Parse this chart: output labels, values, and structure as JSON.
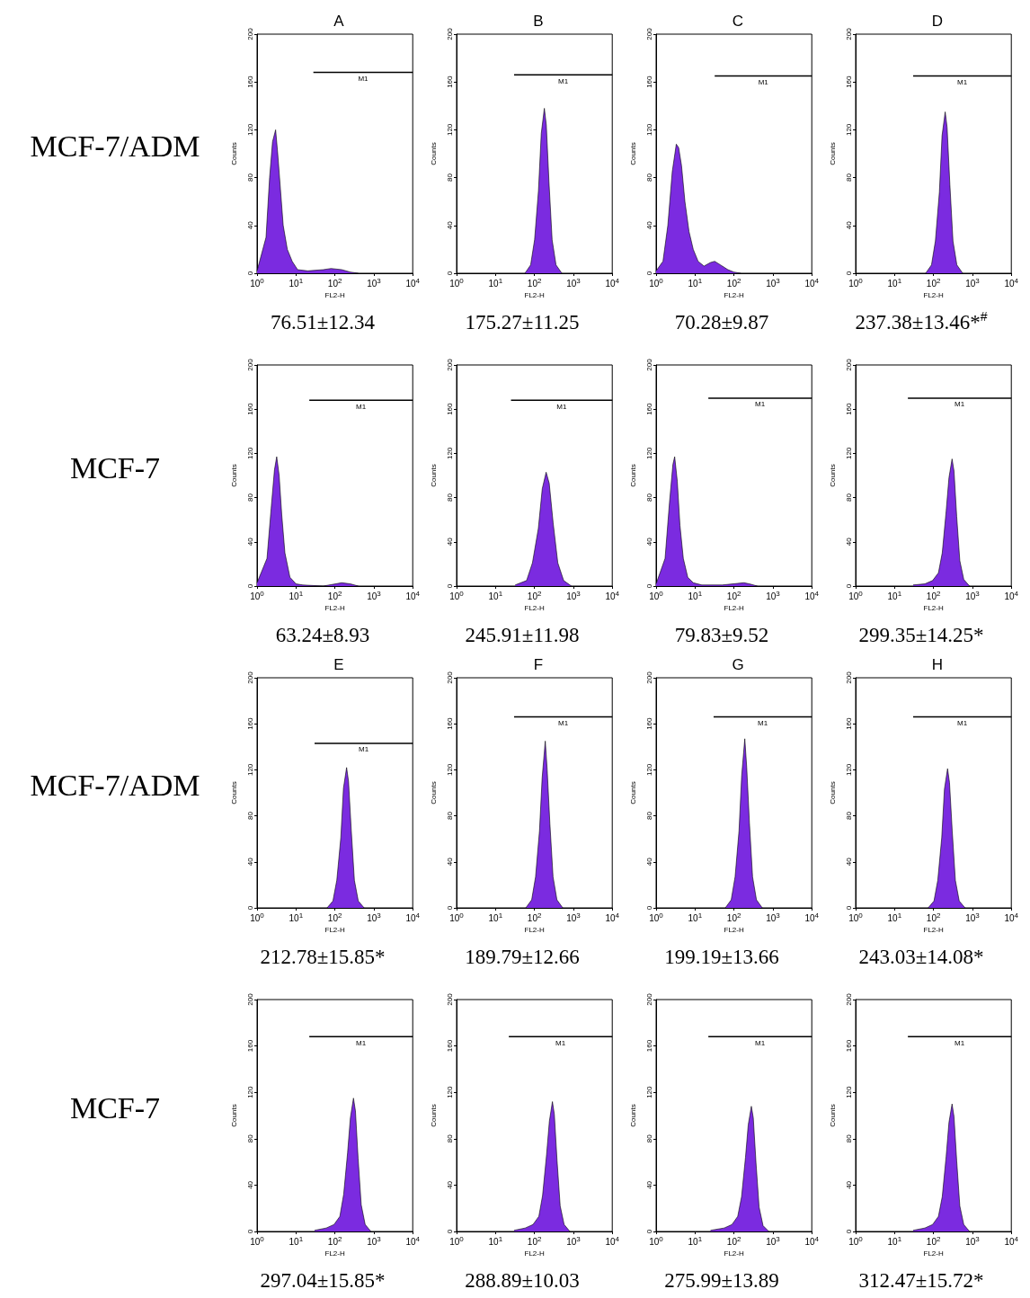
{
  "chart_data": [
    {
      "type": "other",
      "title": "MCF-7/ADM"
    },
    {
      "type": "area",
      "title": "A",
      "xlabel": "FL2-H",
      "ylabel": "Counts",
      "xlim": [
        1,
        10000
      ],
      "ylim": [
        0,
        200
      ],
      "yticks": [
        0,
        40,
        80,
        120,
        160,
        200
      ],
      "xticks": [
        {
          "value": 1,
          "label": "10$^{0}$"
        },
        {
          "value": 10,
          "label": "10$^{1}$"
        },
        {
          "value": 100,
          "label": "10$^{2}$"
        },
        {
          "value": 1000,
          "label": "10$^{3}$"
        },
        {
          "value": 10000,
          "label": "10$^{4}$"
        }
      ],
      "log": "x",
      "grid": false,
      "annotations": [
        "76.51±12.34"
      ],
      "series": [
        {
          "type": "area",
          "color": "#7b2be0",
          "x": [
            1,
            1.7,
            2.1,
            2.5,
            3,
            3.4,
            4,
            4.7,
            6,
            8,
            11,
            20,
            50,
            80,
            150,
            250,
            400
          ],
          "values": [
            2,
            30,
            80,
            110,
            120,
            100,
            70,
            40,
            20,
            10,
            3,
            2,
            3,
            4,
            3,
            1,
            0
          ]
        },
        {
          "type": "line",
          "name": "M1",
          "color": "#000000",
          "x": [
            28,
            10000
          ],
          "values": [
            168,
            168
          ]
        }
      ]
    },
    {
      "type": "area",
      "title": "B",
      "xlabel": "FL2-H",
      "ylabel": "Counts",
      "xlim": [
        1,
        10000
      ],
      "ylim": [
        0,
        200
      ],
      "yticks": [
        0,
        40,
        80,
        120,
        160,
        200
      ],
      "xticks": [
        {
          "value": 1,
          "label": "10$^{0}$"
        },
        {
          "value": 10,
          "label": "10$^{1}$"
        },
        {
          "value": 100,
          "label": "10$^{2}$"
        },
        {
          "value": 1000,
          "label": "10$^{3}$"
        },
        {
          "value": 10000,
          "label": "10$^{4}$"
        }
      ],
      "log": "x",
      "grid": false,
      "annotations": [
        "175.27±11.25"
      ],
      "series": [
        {
          "type": "area",
          "color": "#7b2be0",
          "x": [
            57,
            80,
            101,
            127,
            150,
            180,
            202,
            237,
            285,
            359,
            507
          ],
          "values": [
            0,
            7,
            28,
            69,
            117,
            138,
            124,
            76,
            28,
            7,
            0
          ]
        },
        {
          "type": "line",
          "name": "M1",
          "color": "#000000",
          "x": [
            30,
            10000
          ],
          "values": [
            166,
            166
          ]
        }
      ]
    },
    {
      "type": "area",
      "title": "C",
      "xlabel": "FL2-H",
      "ylabel": "Counts",
      "xlim": [
        1,
        10000
      ],
      "ylim": [
        0,
        200
      ],
      "yticks": [
        0,
        40,
        80,
        120,
        160,
        200
      ],
      "xticks": [
        {
          "value": 1,
          "label": "10$^{0}$"
        },
        {
          "value": 10,
          "label": "10$^{1}$"
        },
        {
          "value": 100,
          "label": "10$^{2}$"
        },
        {
          "value": 1000,
          "label": "10$^{3}$"
        },
        {
          "value": 10000,
          "label": "10$^{4}$"
        }
      ],
      "log": "x",
      "grid": false,
      "annotations": [
        "70.28±9.87"
      ],
      "series": [
        {
          "type": "area",
          "color": "#7b2be0",
          "x": [
            1,
            1.5,
            2,
            2.6,
            3.3,
            3.8,
            4.5,
            5.5,
            7,
            9,
            12,
            17,
            25,
            32,
            45,
            70,
            100,
            150
          ],
          "values": [
            2,
            10,
            40,
            85,
            108,
            105,
            90,
            60,
            35,
            20,
            10,
            6,
            9,
            10,
            7,
            3,
            1,
            0
          ]
        },
        {
          "type": "line",
          "name": "M1",
          "color": "#000000",
          "x": [
            32,
            10000
          ],
          "values": [
            165,
            165
          ]
        }
      ]
    },
    {
      "type": "area",
      "title": "D",
      "xlabel": "FL2-H",
      "ylabel": "Counts",
      "xlim": [
        1,
        10000
      ],
      "ylim": [
        0,
        200
      ],
      "yticks": [
        0,
        40,
        80,
        120,
        160,
        200
      ],
      "xticks": [
        {
          "value": 1,
          "label": "10$^{0}$"
        },
        {
          "value": 10,
          "label": "10$^{1}$"
        },
        {
          "value": 100,
          "label": "10$^{2}$"
        },
        {
          "value": 1000,
          "label": "10$^{3}$"
        },
        {
          "value": 10000,
          "label": "10$^{4}$"
        }
      ],
      "log": "x",
      "grid": false,
      "annotations": [
        "237.38±13.46*$^{#}$"
      ],
      "series": [
        {
          "type": "area",
          "color": "#7b2be0",
          "x": [
            63,
            89,
            112,
            142,
            166,
            200,
            224,
            264,
            317,
            399,
            564
          ],
          "values": [
            0,
            7,
            27,
            68,
            115,
            135,
            122,
            74,
            27,
            7,
            0
          ]
        },
        {
          "type": "line",
          "name": "M1",
          "color": "#000000",
          "x": [
            30,
            10000
          ],
          "values": [
            165,
            165
          ]
        }
      ]
    },
    {
      "type": "other",
      "title": "MCF-7"
    },
    {
      "type": "area",
      "xlabel": "FL2-H",
      "ylabel": "Counts",
      "xlim": [
        1,
        10000
      ],
      "ylim": [
        0,
        200
      ],
      "yticks": [
        0,
        40,
        80,
        120,
        160,
        200
      ],
      "xticks": [
        {
          "value": 1,
          "label": "10$^{0}$"
        },
        {
          "value": 10,
          "label": "10$^{1}$"
        },
        {
          "value": 100,
          "label": "10$^{2}$"
        },
        {
          "value": 1000,
          "label": "10$^{3}$"
        },
        {
          "value": 10000,
          "label": "10$^{4}$"
        }
      ],
      "log": "x",
      "grid": false,
      "annotations": [
        "63.24±8.93"
      ],
      "series": [
        {
          "type": "area",
          "color": "#7b2be0",
          "x": [
            1,
            1.8,
            2.3,
            2.8,
            3.2,
            3.7,
            4.3,
            5.2,
            7,
            10,
            15,
            50,
            150,
            250,
            400
          ],
          "values": [
            3,
            25,
            70,
            105,
            117,
            100,
            65,
            30,
            8,
            2,
            1,
            0,
            3,
            2,
            0
          ]
        },
        {
          "type": "line",
          "name": "M1",
          "color": "#000000",
          "x": [
            22,
            10000
          ],
          "values": [
            168,
            168
          ]
        }
      ]
    },
    {
      "type": "area",
      "xlabel": "FL2-H",
      "ylabel": "Counts",
      "xlim": [
        1,
        10000
      ],
      "ylim": [
        0,
        200
      ],
      "yticks": [
        0,
        40,
        80,
        120,
        160,
        200
      ],
      "xticks": [
        {
          "value": 1,
          "label": "10$^{0}$"
        },
        {
          "value": 10,
          "label": "10$^{1}$"
        },
        {
          "value": 100,
          "label": "10$^{2}$"
        },
        {
          "value": 1000,
          "label": "10$^{3}$"
        },
        {
          "value": 10000,
          "label": "10$^{4}$"
        }
      ],
      "log": "x",
      "grid": false,
      "annotations": [
        "245.91±11.98"
      ],
      "series": [
        {
          "type": "area",
          "color": "#7b2be0",
          "x": [
            32,
            63,
            89,
            126,
            159,
            200,
            240,
            303,
            399,
            564,
            893
          ],
          "values": [
            1,
            5,
            21,
            52,
            88,
            103,
            93,
            57,
            21,
            5,
            0
          ]
        },
        {
          "type": "line",
          "name": "M1",
          "color": "#000000",
          "x": [
            25,
            10000
          ],
          "values": [
            168,
            168
          ]
        }
      ]
    },
    {
      "type": "area",
      "xlabel": "FL2-H",
      "ylabel": "Counts",
      "xlim": [
        1,
        10000
      ],
      "ylim": [
        0,
        200
      ],
      "yticks": [
        0,
        40,
        80,
        120,
        160,
        200
      ],
      "xticks": [
        {
          "value": 1,
          "label": "10$^{0}$"
        },
        {
          "value": 10,
          "label": "10$^{1}$"
        },
        {
          "value": 100,
          "label": "10$^{2}$"
        },
        {
          "value": 1000,
          "label": "10$^{3}$"
        },
        {
          "value": 10000,
          "label": "10$^{4}$"
        }
      ],
      "log": "x",
      "grid": false,
      "annotations": [
        "79.83±9.52"
      ],
      "series": [
        {
          "type": "area",
          "color": "#7b2be0",
          "x": [
            1,
            1.7,
            2.2,
            2.7,
            3,
            3.5,
            4.1,
            5,
            6.5,
            9,
            15,
            50,
            180,
            250,
            400
          ],
          "values": [
            2,
            25,
            75,
            110,
            117,
            95,
            55,
            25,
            8,
            3,
            1,
            1,
            3,
            2,
            0
          ]
        },
        {
          "type": "line",
          "name": "M1",
          "color": "#000000",
          "x": [
            22,
            10000
          ],
          "values": [
            170,
            170
          ]
        }
      ]
    },
    {
      "type": "area",
      "xlabel": "FL2-H",
      "ylabel": "Counts",
      "xlim": [
        1,
        10000
      ],
      "ylim": [
        0,
        200
      ],
      "yticks": [
        0,
        40,
        80,
        120,
        160,
        200
      ],
      "xticks": [
        {
          "value": 1,
          "label": "10$^{0}$"
        },
        {
          "value": 10,
          "label": "10$^{1}$"
        },
        {
          "value": 100,
          "label": "10$^{2}$"
        },
        {
          "value": 1000,
          "label": "10$^{3}$"
        },
        {
          "value": 10000,
          "label": "10$^{4}$"
        }
      ],
      "log": "x",
      "grid": false,
      "annotations": [
        "299.35±14.25*"
      ],
      "series": [
        {
          "type": "area",
          "color": "#7b2be0",
          "x": [
            30,
            60,
            95,
            134,
            168,
            212,
            250,
            300,
            337,
            395,
            475,
            600,
            845
          ],
          "values": [
            1,
            2,
            5,
            12,
            30,
            68,
            98,
            115,
            104,
            63,
            23,
            6,
            0
          ]
        },
        {
          "type": "line",
          "name": "M1",
          "color": "#000000",
          "x": [
            22,
            10000
          ],
          "values": [
            170,
            170
          ]
        }
      ]
    },
    {
      "type": "other",
      "title": "MCF-7/ADM"
    },
    {
      "type": "area",
      "title": "E",
      "xlabel": "FL2-H",
      "ylabel": "Counts",
      "xlim": [
        1,
        10000
      ],
      "ylim": [
        0,
        200
      ],
      "yticks": [
        0,
        40,
        80,
        120,
        160,
        200
      ],
      "xticks": [
        {
          "value": 1,
          "label": "10$^{0}$"
        },
        {
          "value": 10,
          "label": "10$^{1}$"
        },
        {
          "value": 100,
          "label": "10$^{2}$"
        },
        {
          "value": 1000,
          "label": "10$^{3}$"
        },
        {
          "value": 10000,
          "label": "10$^{4}$"
        }
      ],
      "log": "x",
      "grid": false,
      "annotations": [
        "212.78±15.85*"
      ],
      "series": [
        {
          "type": "area",
          "color": "#7b2be0",
          "x": [
            63,
            89,
            112,
            142,
            166,
            200,
            224,
            264,
            317,
            399,
            564
          ],
          "values": [
            0,
            6,
            24,
            61,
            104,
            122,
            110,
            67,
            24,
            6,
            0
          ]
        },
        {
          "type": "line",
          "name": "M1",
          "color": "#000000",
          "x": [
            30,
            10000
          ],
          "values": [
            143,
            143
          ]
        }
      ]
    },
    {
      "type": "area",
      "title": "F",
      "xlabel": "FL2-H",
      "ylabel": "Counts",
      "xlim": [
        1,
        10000
      ],
      "ylim": [
        0,
        200
      ],
      "yticks": [
        0,
        40,
        80,
        120,
        160,
        200
      ],
      "xticks": [
        {
          "value": 1,
          "label": "10$^{0}$"
        },
        {
          "value": 10,
          "label": "10$^{1}$"
        },
        {
          "value": 100,
          "label": "10$^{2}$"
        },
        {
          "value": 1000,
          "label": "10$^{3}$"
        },
        {
          "value": 10000,
          "label": "10$^{4}$"
        }
      ],
      "log": "x",
      "grid": false,
      "annotations": [
        "189.79±12.66"
      ],
      "series": [
        {
          "type": "area",
          "color": "#7b2be0",
          "x": [
            60,
            85,
            107,
            135,
            158,
            190,
            213,
            250,
            301,
            379,
            535
          ],
          "values": [
            0,
            7,
            27,
            67,
            113,
            145,
            120,
            73,
            27,
            7,
            0
          ]
        },
        {
          "type": "line",
          "name": "M1",
          "color": "#000000",
          "x": [
            30,
            10000
          ],
          "values": [
            166,
            166
          ]
        }
      ]
    },
    {
      "type": "area",
      "title": "G",
      "xlabel": "FL2-H",
      "ylabel": "Counts",
      "xlim": [
        1,
        10000
      ],
      "ylim": [
        0,
        200
      ],
      "yticks": [
        0,
        40,
        80,
        120,
        160,
        200
      ],
      "xticks": [
        {
          "value": 1,
          "label": "10$^{0}$"
        },
        {
          "value": 10,
          "label": "10$^{1}$"
        },
        {
          "value": 100,
          "label": "10$^{2}$"
        },
        {
          "value": 1000,
          "label": "10$^{3}$"
        },
        {
          "value": 10000,
          "label": "10$^{4}$"
        }
      ],
      "log": "x",
      "grid": false,
      "annotations": [
        "199.19±13.66"
      ],
      "series": [
        {
          "type": "area",
          "color": "#7b2be0",
          "x": [
            60,
            85,
            107,
            135,
            158,
            190,
            213,
            250,
            301,
            379,
            535
          ],
          "values": [
            0,
            7,
            27,
            67,
            115,
            147,
            122,
            74,
            27,
            7,
            0
          ]
        },
        {
          "type": "line",
          "name": "M1",
          "color": "#000000",
          "x": [
            30,
            10000
          ],
          "values": [
            166,
            166
          ]
        }
      ]
    },
    {
      "type": "area",
      "title": "H",
      "xlabel": "FL2-H",
      "ylabel": "Counts",
      "xlim": [
        1,
        10000
      ],
      "ylim": [
        0,
        200
      ],
      "yticks": [
        0,
        40,
        80,
        120,
        160,
        200
      ],
      "xticks": [
        {
          "value": 1,
          "label": "10$^{0}$"
        },
        {
          "value": 10,
          "label": "10$^{1}$"
        },
        {
          "value": 100,
          "label": "10$^{2}$"
        },
        {
          "value": 1000,
          "label": "10$^{3}$"
        },
        {
          "value": 10000,
          "label": "10$^{4}$"
        }
      ],
      "log": "x",
      "grid": false,
      "annotations": [
        "243.03±14.08*"
      ],
      "series": [
        {
          "type": "area",
          "color": "#7b2be0",
          "x": [
            73,
            103,
            129,
            163,
            191,
            230,
            258,
            303,
            365,
            459,
            648
          ],
          "values": [
            0,
            6,
            24,
            61,
            103,
            121,
            109,
            67,
            24,
            6,
            0
          ]
        },
        {
          "type": "line",
          "name": "M1",
          "color": "#000000",
          "x": [
            30,
            10000
          ],
          "values": [
            166,
            166
          ]
        }
      ]
    },
    {
      "type": "other",
      "title": "MCF-7"
    },
    {
      "type": "area",
      "xlabel": "FL2-H",
      "ylabel": "Counts",
      "xlim": [
        1,
        10000
      ],
      "ylim": [
        0,
        200
      ],
      "yticks": [
        0,
        40,
        80,
        120,
        160,
        200
      ],
      "xticks": [
        {
          "value": 1,
          "label": "10$^{0}$"
        },
        {
          "value": 10,
          "label": "10$^{1}$"
        },
        {
          "value": 100,
          "label": "10$^{2}$"
        },
        {
          "value": 1000,
          "label": "10$^{3}$"
        },
        {
          "value": 10000,
          "label": "10$^{4}$"
        }
      ],
      "log": "x",
      "grid": false,
      "annotations": [
        "297.04±15.85*"
      ],
      "series": [
        {
          "type": "area",
          "color": "#7b2be0",
          "x": [
            30,
            60,
            95,
            134,
            168,
            212,
            250,
            300,
            337,
            395,
            475,
            600,
            845
          ],
          "values": [
            1,
            3,
            6,
            13,
            32,
            68,
            98,
            115,
            104,
            63,
            23,
            6,
            0
          ]
        },
        {
          "type": "line",
          "name": "M1",
          "color": "#000000",
          "x": [
            22,
            10000
          ],
          "values": [
            168,
            168
          ]
        }
      ]
    },
    {
      "type": "area",
      "xlabel": "FL2-H",
      "ylabel": "Counts",
      "xlim": [
        1,
        10000
      ],
      "ylim": [
        0,
        200
      ],
      "yticks": [
        0,
        40,
        80,
        120,
        160,
        200
      ],
      "xticks": [
        {
          "value": 1,
          "label": "10$^{0}$"
        },
        {
          "value": 10,
          "label": "10$^{1}$"
        },
        {
          "value": 100,
          "label": "10$^{2}$"
        },
        {
          "value": 1000,
          "label": "10$^{3}$"
        },
        {
          "value": 10000,
          "label": "10$^{4}$"
        }
      ],
      "log": "x",
      "grid": false,
      "annotations": [
        "288.89±10.03"
      ],
      "series": [
        {
          "type": "area",
          "color": "#7b2be0",
          "x": [
            30,
            58,
            92,
            130,
            162,
            205,
            242,
            290,
            325,
            382,
            459,
            580,
            817
          ],
          "values": [
            1,
            3,
            6,
            13,
            31,
            66,
            95,
            112,
            101,
            61,
            22,
            6,
            0
          ]
        },
        {
          "type": "line",
          "name": "M1",
          "color": "#000000",
          "x": [
            22,
            10000
          ],
          "values": [
            168,
            168
          ]
        }
      ]
    },
    {
      "type": "area",
      "xlabel": "FL2-H",
      "ylabel": "Counts",
      "xlim": [
        1,
        10000
      ],
      "ylim": [
        0,
        200
      ],
      "yticks": [
        0,
        40,
        80,
        120,
        160,
        200
      ],
      "xticks": [
        {
          "value": 1,
          "label": "10$^{0}$"
        },
        {
          "value": 10,
          "label": "10$^{1}$"
        },
        {
          "value": 100,
          "label": "10$^{2}$"
        },
        {
          "value": 1000,
          "label": "10$^{3}$"
        },
        {
          "value": 10000,
          "label": "10$^{4}$"
        }
      ],
      "log": "x",
      "grid": false,
      "annotations": [
        "275.99±13.89"
      ],
      "series": [
        {
          "type": "area",
          "color": "#7b2be0",
          "x": [
            25,
            56,
            89,
            125,
            157,
            198,
            233,
            280,
            314,
            369,
            443,
            560,
            789
          ],
          "values": [
            1,
            3,
            6,
            13,
            30,
            64,
            92,
            108,
            98,
            59,
            21,
            5,
            0
          ]
        },
        {
          "type": "line",
          "name": "M1",
          "color": "#000000",
          "x": [
            22,
            10000
          ],
          "values": [
            168,
            168
          ]
        }
      ]
    },
    {
      "type": "area",
      "xlabel": "FL2-H",
      "ylabel": "Counts",
      "xlim": [
        1,
        10000
      ],
      "ylim": [
        0,
        200
      ],
      "yticks": [
        0,
        40,
        80,
        120,
        160,
        200
      ],
      "xticks": [
        {
          "value": 1,
          "label": "10$^{0}$"
        },
        {
          "value": 10,
          "label": "10$^{1}$"
        },
        {
          "value": 100,
          "label": "10$^{2}$"
        },
        {
          "value": 1000,
          "label": "10$^{3}$"
        },
        {
          "value": 10000,
          "label": "10$^{4}$"
        }
      ],
      "log": "x",
      "grid": false,
      "annotations": [
        "312.47±15.72*"
      ],
      "series": [
        {
          "type": "area",
          "color": "#7b2be0",
          "x": [
            30,
            60,
            95,
            134,
            168,
            212,
            250,
            300,
            337,
            395,
            475,
            600,
            845
          ],
          "values": [
            1,
            3,
            6,
            13,
            30,
            65,
            94,
            110,
            99,
            61,
            22,
            6,
            0
          ]
        },
        {
          "type": "line",
          "name": "M1",
          "color": "#000000",
          "x": [
            22,
            10000
          ],
          "values": [
            168,
            168
          ]
        }
      ]
    }
  ]
}
